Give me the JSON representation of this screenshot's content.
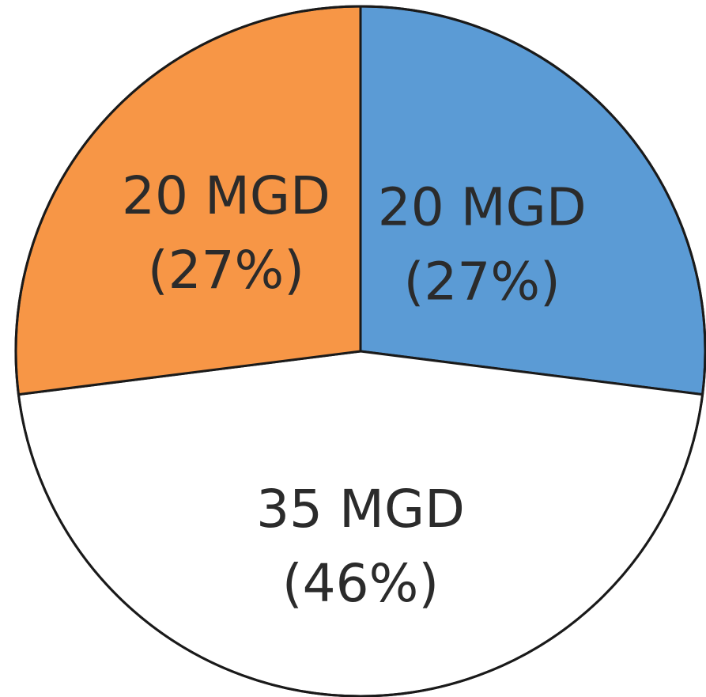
{
  "chart_data": {
    "type": "pie",
    "title": "",
    "unit": "MGD",
    "slices": [
      {
        "value": 20,
        "percent": 27,
        "label": "20 MGD",
        "percent_label": "(27%)",
        "color": "#5b9bd5"
      },
      {
        "value": 35,
        "percent": 46,
        "label": "35 MGD",
        "percent_label": "(46%)",
        "color": "#ffffff"
      },
      {
        "value": 20,
        "percent": 27,
        "label": "20 MGD",
        "percent_label": "(27%)",
        "color": "#f79646"
      }
    ],
    "start_angle_deg": 0,
    "direction": "clockwise",
    "legend": "none",
    "outline_color": "#1a1a1a"
  }
}
